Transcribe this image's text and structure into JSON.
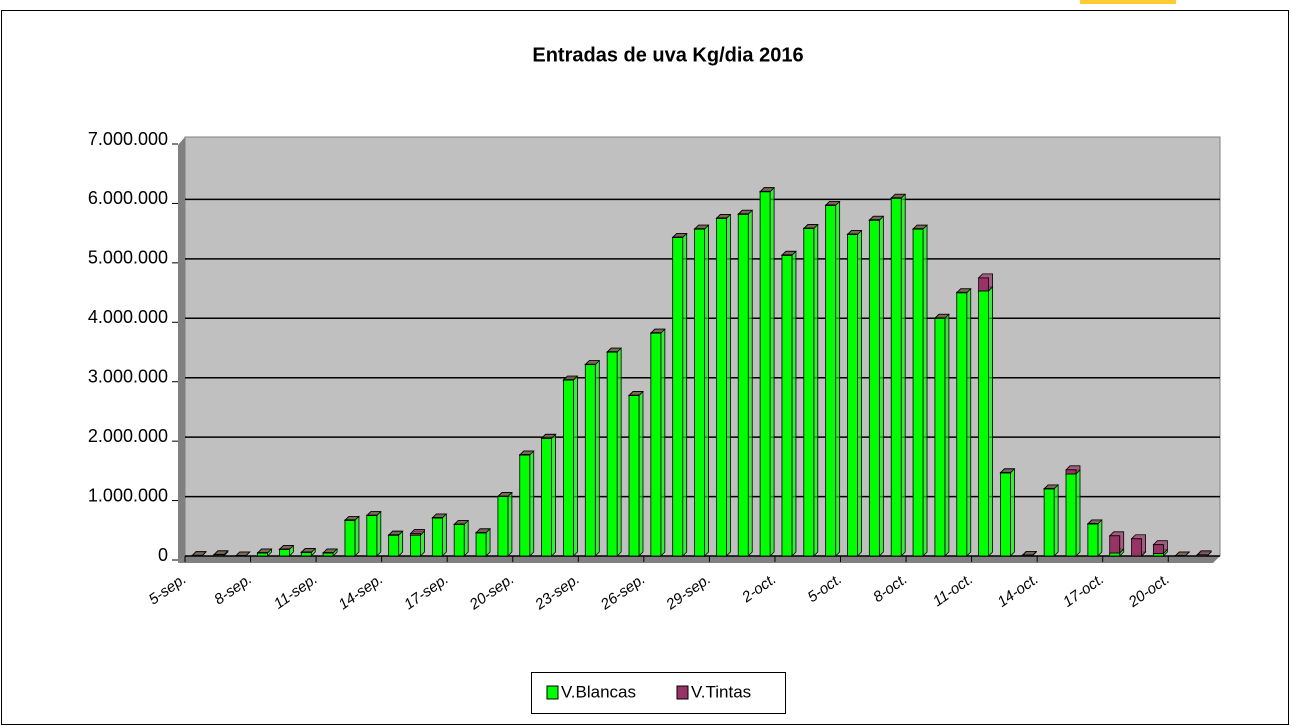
{
  "chart_data": {
    "type": "stacked_bar",
    "title": "Entradas de uva Kg/dia 2016",
    "categories": [
      "5-sep.",
      null,
      null,
      "8-sep.",
      null,
      null,
      "11-sep.",
      null,
      null,
      "14-sep.",
      null,
      null,
      "17-sep.",
      null,
      null,
      "20-sep.",
      null,
      null,
      "23-sep.",
      null,
      null,
      "26-sep.",
      null,
      null,
      "29-sep.",
      null,
      null,
      "2-oct.",
      null,
      null,
      "5-oct.",
      null,
      null,
      "8-oct.",
      null,
      null,
      "11-oct.",
      null,
      null,
      "14-oct.",
      null,
      null,
      "17-oct.",
      null,
      null,
      "20-oct.",
      null
    ],
    "series": [
      {
        "name": "V.Blancas",
        "color": "#00ff00",
        "values": [
          5000,
          20000,
          0,
          50000,
          110000,
          60000,
          50000,
          600000,
          680000,
          350000,
          350000,
          640000,
          530000,
          390000,
          1000000,
          1700000,
          1980000,
          2960000,
          3220000,
          3430000,
          2700000,
          3750000,
          5360000,
          5500000,
          5680000,
          5750000,
          6130000,
          5060000,
          5510000,
          5900000,
          5410000,
          5650000,
          6020000,
          5500000,
          4000000,
          4430000,
          4460000,
          1400000,
          10000,
          1130000,
          1380000,
          540000,
          50000,
          0,
          40000,
          0,
          0
        ]
      },
      {
        "name": "V.Tintas",
        "color": "#993366",
        "values": [
          0,
          0,
          0,
          0,
          0,
          0,
          0,
          0,
          0,
          0,
          30000,
          0,
          0,
          0,
          0,
          0,
          0,
          0,
          0,
          0,
          0,
          0,
          0,
          0,
          0,
          0,
          0,
          0,
          0,
          0,
          0,
          0,
          0,
          0,
          0,
          0,
          220000,
          0,
          0,
          0,
          70000,
          0,
          290000,
          290000,
          150000,
          0,
          20000
        ]
      }
    ],
    "ylim": [
      0,
      7000000
    ],
    "yticks": [
      0,
      {
        "value": 1000000,
        "label": "1.000.000"
      },
      {
        "value": 2000000,
        "label": "2.000.000"
      },
      {
        "value": 3000000,
        "label": "3.000.000"
      },
      {
        "value": 4000000,
        "label": "4.000.000"
      },
      {
        "value": 5000000,
        "label": "5.000.000"
      },
      {
        "value": 6000000,
        "label": "6.000.000"
      },
      {
        "value": 7000000,
        "label": "7.000.000"
      }
    ],
    "grid": true,
    "legend": "bottom"
  }
}
